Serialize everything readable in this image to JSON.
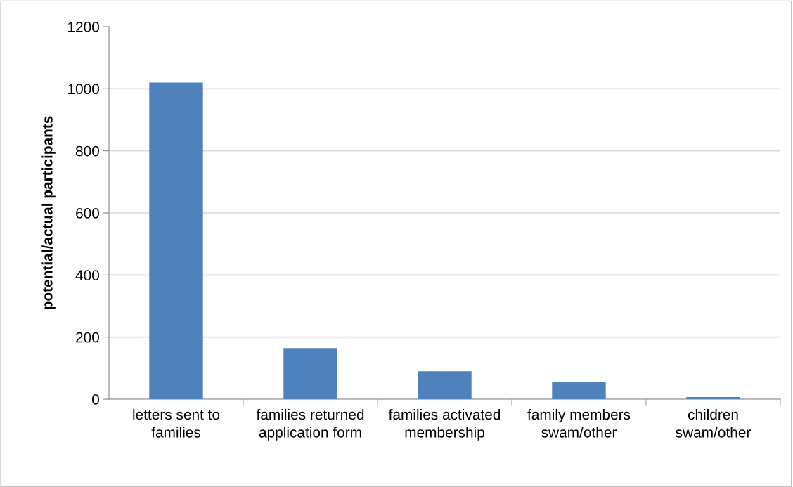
{
  "chart_data": {
    "type": "bar",
    "ylabel": "potential/actual participants",
    "categories": [
      "letters sent to families",
      "families returned application form",
      "families activated membership",
      "family members swam/other",
      "children swam/other"
    ],
    "values": [
      1020,
      165,
      90,
      55,
      7
    ],
    "color": "#4f81bd",
    "ylim": [
      0,
      1200
    ],
    "yticks": [
      0,
      200,
      400,
      600,
      800,
      1000,
      1200
    ],
    "grid": "y"
  }
}
